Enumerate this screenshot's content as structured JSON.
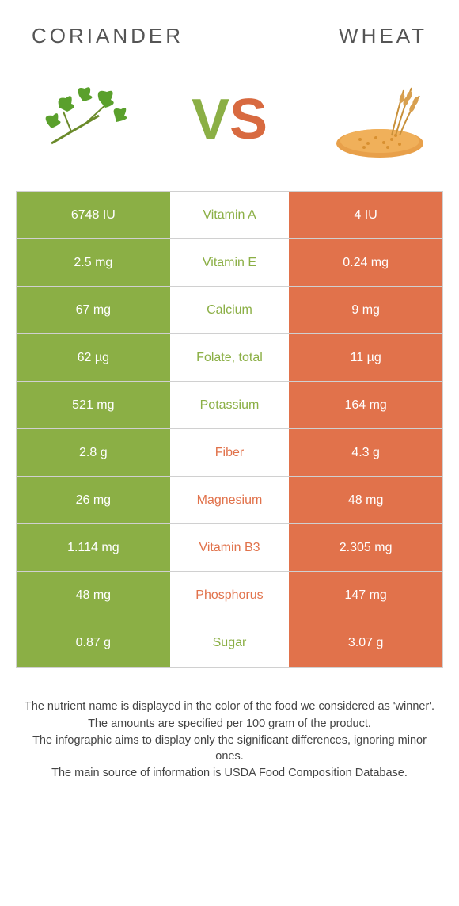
{
  "foods": {
    "left": "CORIANDER",
    "right": "WHEAT"
  },
  "vs": {
    "v": "V",
    "s": "S"
  },
  "colors": {
    "left": "#8baf45",
    "right": "#e1724b",
    "border": "#d0d0d0"
  },
  "rows": [
    {
      "left": "6748 IU",
      "label": "Vitamin A",
      "right": "4 IU",
      "winner": "left"
    },
    {
      "left": "2.5 mg",
      "label": "Vitamin E",
      "right": "0.24 mg",
      "winner": "left"
    },
    {
      "left": "67 mg",
      "label": "Calcium",
      "right": "9 mg",
      "winner": "left"
    },
    {
      "left": "62 µg",
      "label": "Folate, total",
      "right": "11 µg",
      "winner": "left"
    },
    {
      "left": "521 mg",
      "label": "Potassium",
      "right": "164 mg",
      "winner": "left"
    },
    {
      "left": "2.8 g",
      "label": "Fiber",
      "right": "4.3 g",
      "winner": "right"
    },
    {
      "left": "26 mg",
      "label": "Magnesium",
      "right": "48 mg",
      "winner": "right"
    },
    {
      "left": "1.114 mg",
      "label": "Vitamin B3",
      "right": "2.305 mg",
      "winner": "right"
    },
    {
      "left": "48 mg",
      "label": "Phosphorus",
      "right": "147 mg",
      "winner": "right"
    },
    {
      "left": "0.87 g",
      "label": "Sugar",
      "right": "3.07 g",
      "winner": "left"
    }
  ],
  "notes": [
    "The nutrient name is displayed in the color of the food we considered as 'winner'.",
    "The amounts are specified per 100 gram of the product.",
    "The infographic aims to display only the significant differences, ignoring minor ones.",
    "The main source of information is USDA Food Composition Database."
  ]
}
